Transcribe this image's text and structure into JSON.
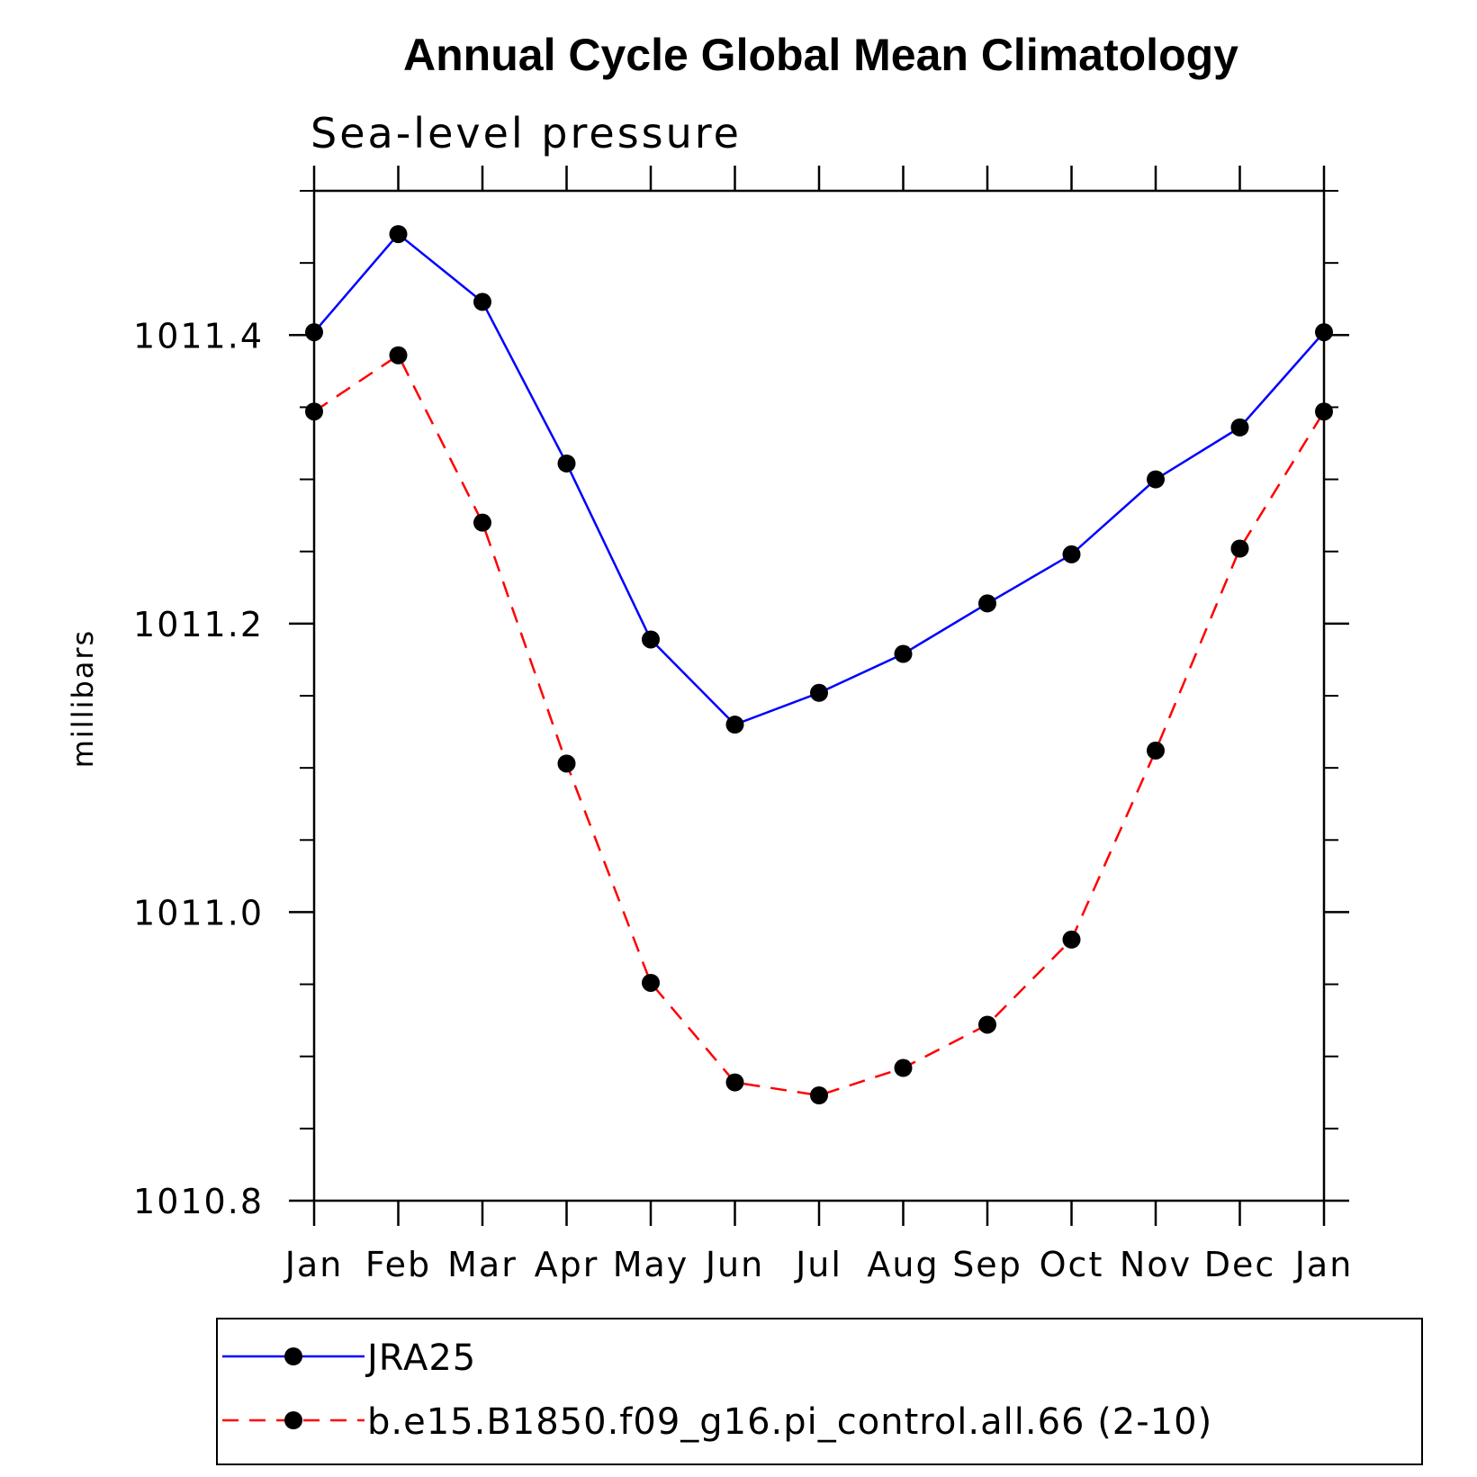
{
  "chart_data": {
    "type": "line",
    "title": "Annual Cycle Global Mean Climatology",
    "subtitle": "Sea-level pressure",
    "ylabel": "millibars",
    "xlabel": "",
    "categories": [
      "Jan",
      "Feb",
      "Mar",
      "Apr",
      "May",
      "Jun",
      "Jul",
      "Aug",
      "Sep",
      "Oct",
      "Nov",
      "Dec",
      "Jan"
    ],
    "ylim": [
      1010.8,
      1011.5
    ],
    "yticks": [
      1010.8,
      1011.0,
      1011.2,
      1011.4
    ],
    "ytick_labels": [
      "1010.8",
      "1011.0",
      "1011.2",
      "1011.4"
    ],
    "y_minor_step": 0.05,
    "grid": false,
    "legend_position": "bottom",
    "series": [
      {
        "name": "JRA25",
        "color": "#0000ff",
        "line_style": "solid",
        "marker": "filled-circle",
        "values": [
          1011.402,
          1011.47,
          1011.423,
          1011.311,
          1011.189,
          1011.13,
          1011.152,
          1011.179,
          1011.214,
          1011.248,
          1011.3,
          1011.336,
          1011.402
        ]
      },
      {
        "name": "b.e15.B1850.f09_g16.pi_control.all.66 (2-10)",
        "color": "#ff0000",
        "line_style": "dashed",
        "marker": "filled-circle",
        "values": [
          1011.347,
          1011.386,
          1011.27,
          1011.103,
          1010.951,
          1010.882,
          1010.873,
          1010.892,
          1010.922,
          1010.981,
          1011.112,
          1011.252,
          1011.347
        ]
      }
    ]
  }
}
